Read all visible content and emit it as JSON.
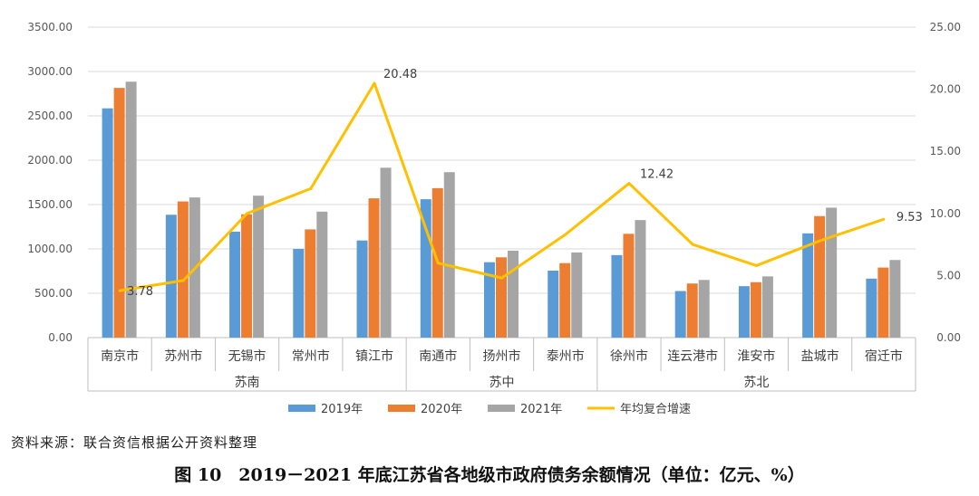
{
  "source": "资料来源：联合资信根据公开资料整理",
  "caption": "图 10　2019－2021 年底江苏省各地级市政府债务余额情况（单位：亿元、%）",
  "chart_data": {
    "type": "bar",
    "categories": [
      "南京市",
      "苏州市",
      "无锡市",
      "常州市",
      "镇江市",
      "南通市",
      "扬州市",
      "泰州市",
      "徐州市",
      "连云港市",
      "淮安市",
      "盐城市",
      "宿迁市"
    ],
    "groups": [
      {
        "label": "苏南",
        "from": 0,
        "to": 4
      },
      {
        "label": "苏中",
        "from": 5,
        "to": 7
      },
      {
        "label": "苏北",
        "from": 8,
        "to": 12
      }
    ],
    "series": [
      {
        "name": "2019年",
        "color": "#5b9bd5",
        "axis": "left",
        "values": [
          2585,
          1385,
          1195,
          1000,
          1095,
          1560,
          850,
          755,
          930,
          525,
          580,
          1175,
          665
        ]
      },
      {
        "name": "2020年",
        "color": "#ed7d31",
        "axis": "left",
        "values": [
          2815,
          1535,
          1390,
          1220,
          1570,
          1685,
          905,
          840,
          1170,
          610,
          625,
          1370,
          790
        ]
      },
      {
        "name": "2021年",
        "color": "#a5a5a5",
        "axis": "left",
        "values": [
          2885,
          1580,
          1600,
          1420,
          1915,
          1865,
          980,
          960,
          1325,
          650,
          690,
          1465,
          875
        ]
      },
      {
        "name": "年均复合增速",
        "color": "#ffc000",
        "axis": "right",
        "type": "line",
        "values": [
          3.78,
          4.6,
          10.0,
          12.0,
          20.48,
          6.0,
          4.8,
          8.3,
          12.42,
          7.5,
          5.8,
          7.8,
          9.53
        ]
      }
    ],
    "left_axis": {
      "min": 0,
      "max": 3500,
      "step": 500,
      "tick_labels": [
        "0.00",
        "500.00",
        "1000.00",
        "1500.00",
        "2000.00",
        "2500.00",
        "3000.00",
        "3500.00"
      ]
    },
    "right_axis": {
      "min": 0,
      "max": 25,
      "step": 5,
      "tick_labels": [
        "0.00",
        "5.00",
        "10.00",
        "15.00",
        "20.00",
        "25.00"
      ]
    },
    "data_labels": [
      {
        "index": 0,
        "text": "3.78"
      },
      {
        "index": 4,
        "text": "20.48"
      },
      {
        "index": 8,
        "text": "12.42"
      },
      {
        "index": 12,
        "text": "9.53"
      }
    ],
    "gridlines": true,
    "legend_position": "bottom"
  }
}
